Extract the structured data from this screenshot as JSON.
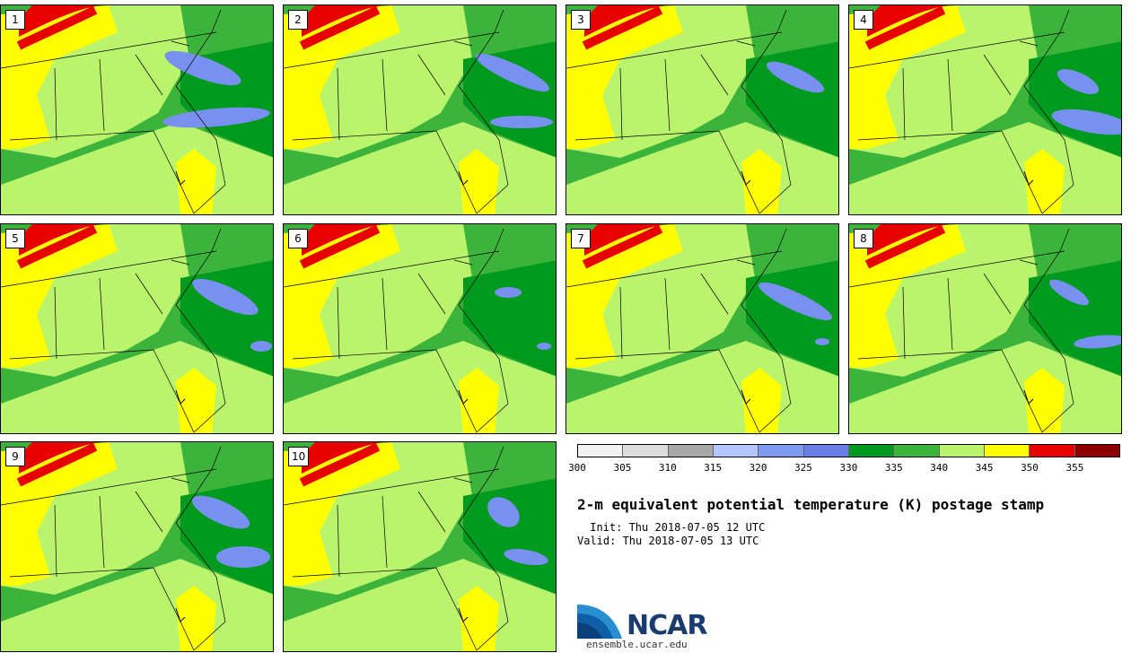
{
  "title": "2-m equivalent potential temperature (K) postage stamp",
  "init": " Init: Thu 2018-07-05 12 UTC",
  "valid": "Valid: Thu 2018-07-05 13 UTC",
  "logo": {
    "text": "NCAR",
    "url": "ensemble.ucar.edu"
  },
  "members": [
    "1",
    "2",
    "3",
    "4",
    "5",
    "6",
    "7",
    "8",
    "9",
    "10"
  ],
  "colors": {
    "dark_green": "#009b1e",
    "green": "#3cb43c",
    "light_green": "#b9f46c",
    "yellow": "#ffff00",
    "red": "#e60000",
    "blue": "#7890f0",
    "border": "#000000"
  },
  "colorbar": {
    "ticks": [
      "300",
      "305",
      "310",
      "315",
      "320",
      "325",
      "330",
      "335",
      "340",
      "345",
      "350",
      "355"
    ],
    "colors": [
      "#f2f2f2",
      "#dcdcdc",
      "#a8a8a8",
      "#b4c8ff",
      "#7d9bf0",
      "#6a7de6",
      "#009b1e",
      "#3cb43c",
      "#b9f46c",
      "#ffff00",
      "#e60000",
      "#8c0000"
    ]
  }
}
